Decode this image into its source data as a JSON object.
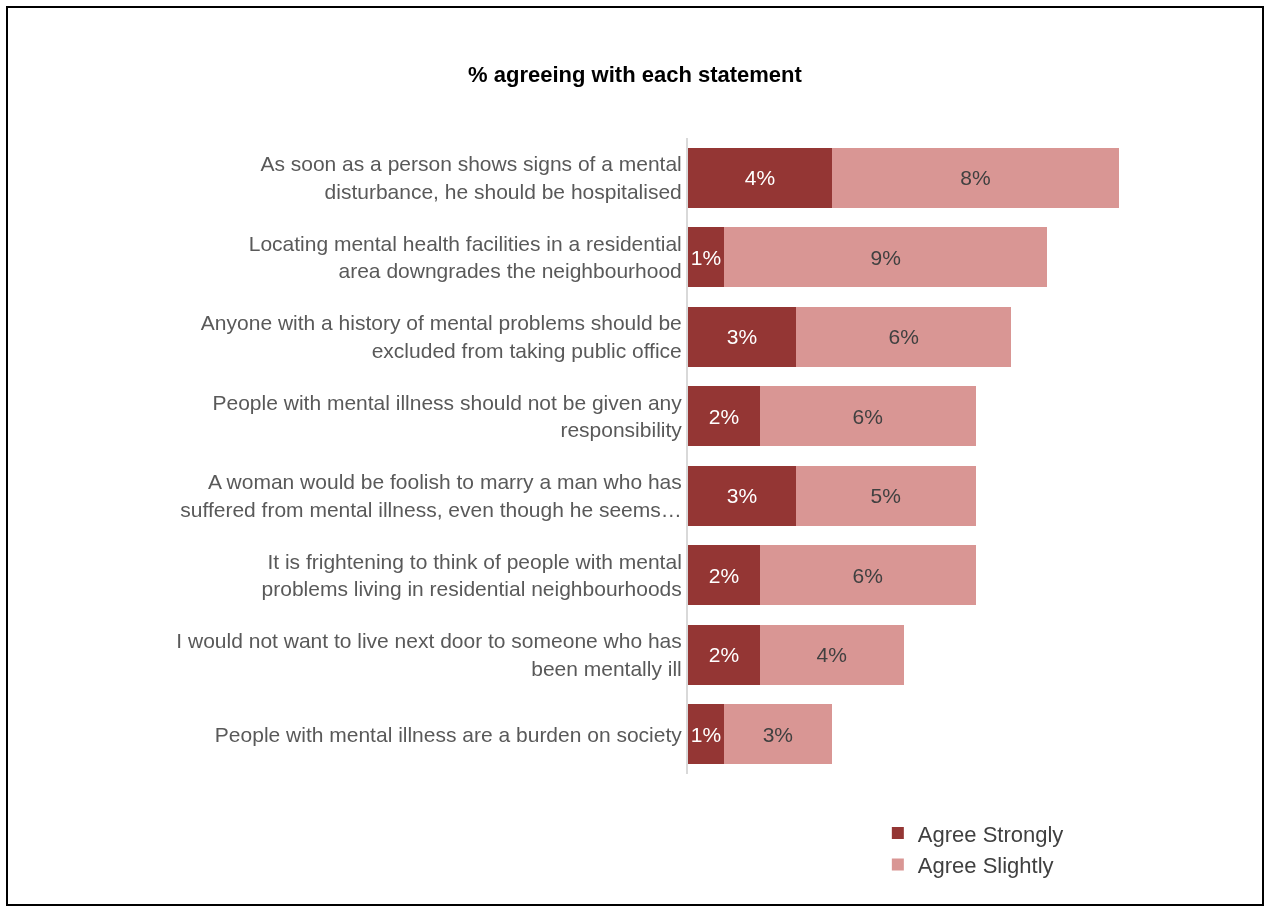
{
  "chart_data": {
    "type": "bar",
    "orientation": "horizontal",
    "stacked": true,
    "title": "% agreeing with each statement",
    "categories": [
      "As soon as a person shows signs of a mental disturbance, he should be hospitalised",
      "Locating mental health facilities in a residential area downgrades the neighbourhood",
      "Anyone with a history of mental problems should be excluded from taking public office",
      "People with mental illness should not be given any responsibility",
      "A woman would be foolish to marry a man who has suffered from mental illness, even though he seems…",
      "It is frightening to think of people with mental problems living in residential neighbourhoods",
      "I would not want to live next door to someone who has been mentally ill",
      "People with mental illness are a burden on society"
    ],
    "series": [
      {
        "name": "Agree Strongly",
        "color": "#943634",
        "values": [
          4,
          1,
          3,
          2,
          3,
          2,
          2,
          1
        ],
        "value_labels": [
          "4%",
          "1%",
          "3%",
          "2%",
          "3%",
          "2%",
          "2%",
          "1%"
        ]
      },
      {
        "name": "Agree Slightly",
        "color": "#d99694",
        "values": [
          8,
          9,
          6,
          6,
          5,
          6,
          4,
          3
        ],
        "value_labels": [
          "8%",
          "9%",
          "6%",
          "6%",
          "5%",
          "6%",
          "4%",
          "3%"
        ]
      }
    ],
    "legend": "bottom"
  }
}
